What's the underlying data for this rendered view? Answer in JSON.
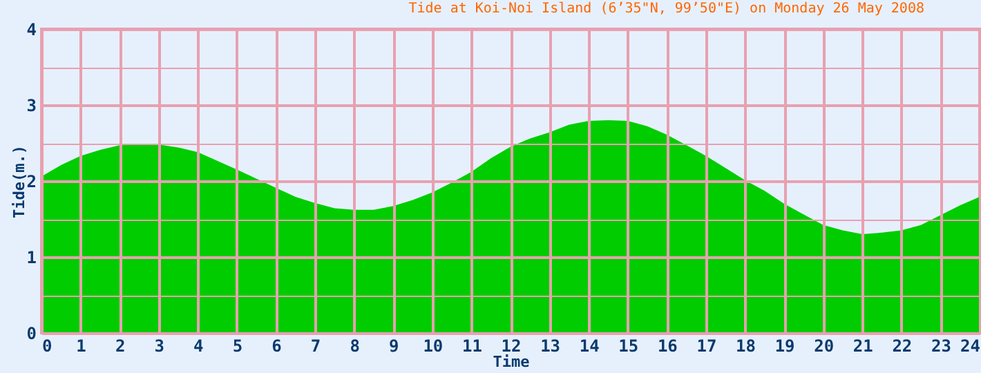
{
  "chart_data": {
    "type": "area",
    "title": "Tide at Koi-Noi Island (6’35\"N, 99’50\"E) on Monday 26 May 2008",
    "xlabel": "Time",
    "ylabel": "Tide(m.)",
    "x": [
      0,
      0.5,
      1,
      1.5,
      2,
      2.5,
      3,
      3.5,
      4,
      5,
      5.5,
      6,
      6.5,
      7,
      7.5,
      8,
      8.5,
      9,
      9.5,
      10,
      10.5,
      11,
      11.5,
      12,
      12.5,
      13,
      13.5,
      14,
      14.5,
      15,
      15.5,
      16,
      16.5,
      17,
      17.5,
      18,
      18.5,
      19,
      19.5,
      20,
      20.5,
      21,
      21.5,
      22,
      22.5,
      23,
      23.5,
      24
    ],
    "series": [
      {
        "color": "#00cc00",
        "values": [
          2.06,
          2.21,
          2.33,
          2.41,
          2.47,
          2.48,
          2.48,
          2.44,
          2.38,
          2.15,
          2.03,
          1.91,
          1.79,
          1.71,
          1.64,
          1.62,
          1.62,
          1.67,
          1.75,
          1.85,
          1.98,
          2.12,
          2.3,
          2.45,
          2.56,
          2.64,
          2.74,
          2.79,
          2.8,
          2.79,
          2.72,
          2.61,
          2.47,
          2.33,
          2.17,
          2.01,
          1.87,
          1.7,
          1.56,
          1.42,
          1.35,
          1.3,
          1.32,
          1.35,
          1.42,
          1.55,
          1.68,
          1.79
        ]
      }
    ],
    "xlim": [
      0,
      24
    ],
    "ylim": [
      0,
      4
    ],
    "xticks": [
      0,
      1,
      2,
      3,
      4,
      5,
      6,
      7,
      8,
      9,
      10,
      11,
      12,
      13,
      14,
      15,
      16,
      17,
      18,
      19,
      20,
      21,
      22,
      23,
      24
    ],
    "yticks": [
      0,
      {
        "value": 0.5,
        "label": null
      },
      1,
      {
        "value": 1.5,
        "label": null
      },
      2,
      {
        "value": 2.5,
        "label": null
      },
      3,
      {
        "value": 3.5,
        "label": null
      },
      4
    ],
    "grid": true
  }
}
